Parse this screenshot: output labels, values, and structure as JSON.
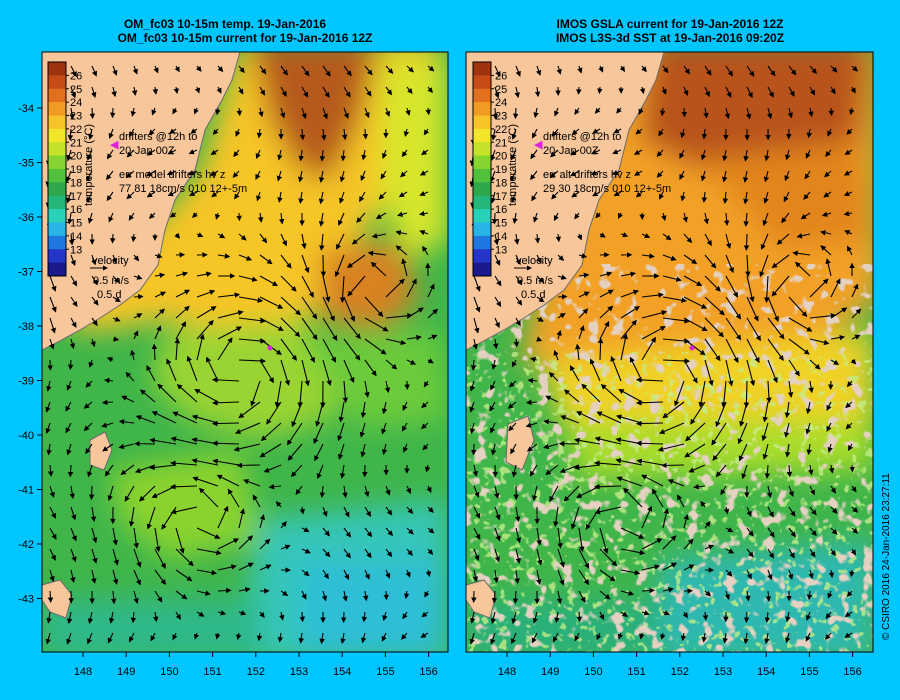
{
  "colors": {
    "background": "#00c6ff",
    "land": "#f7c69a",
    "cloud": "#c8a38a",
    "colorbar": [
      "#1a1a8c",
      "#2436c8",
      "#1f78e0",
      "#27b4e6",
      "#2ad1b9",
      "#25b67a",
      "#2ea84a",
      "#4fc13a",
      "#86d42f",
      "#c3e228",
      "#f1e629",
      "#f6c426",
      "#f29b22",
      "#e26f1d",
      "#c64b16",
      "#a0330f"
    ]
  },
  "panels": [
    {
      "id": "model",
      "title_line1": "OM_fc03 10-15m temp. 19-Jan-2016",
      "title_line2": "OM_fc03 10-15m current for 19-Jan-2016 12Z",
      "colorbar_ticks": [
        "26",
        "25",
        "24",
        "23",
        "22",
        "21",
        "20",
        "19",
        "18",
        "17",
        "16",
        "15",
        "14",
        "13"
      ],
      "colorbar_label": "temperature (°C)",
      "legend": {
        "drifters": "drifters @12h to",
        "drifters_date": "20-Jan 00Z",
        "err_title": "err model drifters hv z",
        "err_values": "77 81 18cm/s 010 12+-5m",
        "velocity": "velocity",
        "scale_speed": "0.5 m/s",
        "scale_time": "0.5 d"
      },
      "x_ticks": [
        "148",
        "149",
        "150",
        "151",
        "152",
        "153",
        "154",
        "155",
        "156"
      ],
      "y_ticks": [
        "-34",
        "-35",
        "-36",
        "-37",
        "-38",
        "-39",
        "-40",
        "-41",
        "-42",
        "-43"
      ]
    },
    {
      "id": "obs",
      "title_line1": "IMOS GSLA current for 19-Jan-2016 12Z",
      "title_line2": "IMOS L3S-3d SST at 19-Jan-2016 09:20Z",
      "colorbar_ticks": [
        "26",
        "25",
        "24",
        "23",
        "22",
        "21",
        "20",
        "19",
        "18",
        "17",
        "16",
        "15",
        "14",
        "13"
      ],
      "colorbar_label": "temperature (°C)",
      "legend": {
        "drifters": "drifters @12h to",
        "drifters_date": "20-Jan 00Z",
        "err_title": "err alt drifters hv z",
        "err_values": "29 30 18cm/s 010 12+-5m",
        "velocity": "velocity",
        "scale_speed": "0.5 m/s",
        "scale_time": "0.5 d"
      },
      "x_ticks": [
        "148",
        "149",
        "150",
        "151",
        "152",
        "153",
        "154",
        "155",
        "156"
      ],
      "y_ticks": []
    }
  ],
  "credit": "© CSIRO 2016   24-Jan-2016 23:27:11"
}
